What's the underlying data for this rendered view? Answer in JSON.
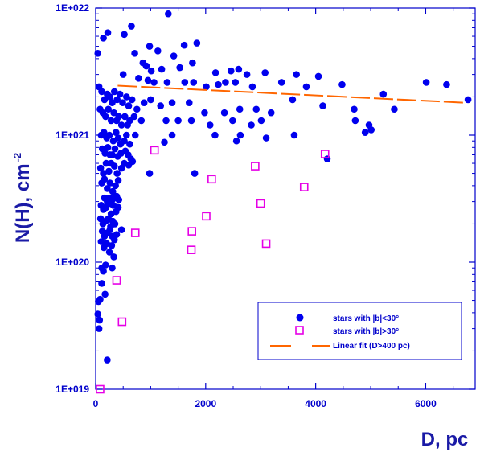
{
  "chart_data": {
    "type": "scatter",
    "xlabel": "D, pc",
    "ylabel_main": "N(H), cm",
    "ylabel_exp": "-2",
    "x_scale": "linear",
    "y_scale": "log",
    "xlim": [
      0,
      6900
    ],
    "ylim": [
      1e+19,
      1e+22
    ],
    "x_ticks": [
      0,
      2000,
      4000,
      6000
    ],
    "x_tick_labels": [
      "0",
      "2000",
      "4000",
      "6000"
    ],
    "y_ticks": [
      1e+19,
      1e+20,
      1e+21,
      1e+22
    ],
    "y_tick_labels": [
      "1E+019",
      "1E+020",
      "1E+021",
      "1E+022"
    ],
    "grid": false,
    "legend_position": "bottom-right",
    "colors": {
      "axis": "#0000cc",
      "low_b": "#0000ee",
      "high_b": "#e600e6",
      "fit": "#ff6600"
    },
    "series": [
      {
        "name": "stars with |b|<30°",
        "marker": "filled-circle",
        "points": [
          [
            1320,
            9e+21
          ],
          [
            140,
            5.8e+21
          ],
          [
            520,
            6.2e+21
          ],
          [
            220,
            6.4e+21
          ],
          [
            650,
            7.2e+21
          ],
          [
            980,
            5e+21
          ],
          [
            1130,
            4.6e+21
          ],
          [
            1420,
            4.2e+21
          ],
          [
            1610,
            5.1e+21
          ],
          [
            1840,
            5.3e+21
          ],
          [
            40,
            4.4e+21
          ],
          [
            710,
            4.4e+21
          ],
          [
            860,
            3.7e+21
          ],
          [
            920,
            3.5e+21
          ],
          [
            1010,
            3.2e+21
          ],
          [
            1200,
            3.3e+21
          ],
          [
            1530,
            3.4e+21
          ],
          [
            1760,
            3.7e+21
          ],
          [
            2180,
            3.1e+21
          ],
          [
            2460,
            3.2e+21
          ],
          [
            2600,
            3.3e+21
          ],
          [
            2750,
            3e+21
          ],
          [
            3080,
            3.1e+21
          ],
          [
            3650,
            3e+21
          ],
          [
            4050,
            2.9e+21
          ],
          [
            500,
            3e+21
          ],
          [
            780,
            2.8e+21
          ],
          [
            950,
            2.7e+21
          ],
          [
            1060,
            2.6e+21
          ],
          [
            1300,
            2.6e+21
          ],
          [
            1620,
            2.6e+21
          ],
          [
            1780,
            2.6e+21
          ],
          [
            2010,
            2.4e+21
          ],
          [
            2230,
            2.5e+21
          ],
          [
            2360,
            2.6e+21
          ],
          [
            2540,
            2.6e+21
          ],
          [
            2850,
            2.4e+21
          ],
          [
            3380,
            2.6e+21
          ],
          [
            3830,
            2.4e+21
          ],
          [
            4480,
            2.5e+21
          ],
          [
            6010,
            2.6e+21
          ],
          [
            6380,
            2.5e+21
          ],
          [
            6770,
            1.9e+21
          ],
          [
            60,
            2.4e+21
          ],
          [
            110,
            2.2e+21
          ],
          [
            160,
            1.9e+21
          ],
          [
            210,
            2.1e+21
          ],
          [
            260,
            2e+21
          ],
          [
            300,
            1.8e+21
          ],
          [
            340,
            2.2e+21
          ],
          [
            390,
            1.9e+21
          ],
          [
            440,
            2.1e+21
          ],
          [
            490,
            1.8e+21
          ],
          [
            560,
            2e+21
          ],
          [
            600,
            1.7e+21
          ],
          [
            660,
            1.9e+21
          ],
          [
            750,
            1.6e+21
          ],
          [
            880,
            1.8e+21
          ],
          [
            1000,
            1.9e+21
          ],
          [
            1180,
            1.7e+21
          ],
          [
            1390,
            1.8e+21
          ],
          [
            1700,
            1.8e+21
          ],
          [
            1980,
            1.5e+21
          ],
          [
            2340,
            1.5e+21
          ],
          [
            2620,
            1.6e+21
          ],
          [
            2920,
            1.6e+21
          ],
          [
            3190,
            1.5e+21
          ],
          [
            3580,
            1.9e+21
          ],
          [
            4130,
            1.7e+21
          ],
          [
            4700,
            1.6e+21
          ],
          [
            5230,
            2.1e+21
          ],
          [
            5430,
            1.6e+21
          ],
          [
            80,
            1.6e+21
          ],
          [
            130,
            1.5e+21
          ],
          [
            180,
            1.4e+21
          ],
          [
            230,
            1.6e+21
          ],
          [
            280,
            1.3e+21
          ],
          [
            330,
            1.5e+21
          ],
          [
            380,
            1.3e+21
          ],
          [
            420,
            1.4e+21
          ],
          [
            470,
            1.2e+21
          ],
          [
            530,
            1.4e+21
          ],
          [
            580,
            1.2e+21
          ],
          [
            620,
            1.3e+21
          ],
          [
            700,
            1.4e+21
          ],
          [
            830,
            1.3e+21
          ],
          [
            1280,
            1.3e+21
          ],
          [
            1500,
            1.3e+21
          ],
          [
            1740,
            1.3e+21
          ],
          [
            2080,
            1.2e+21
          ],
          [
            2490,
            1.3e+21
          ],
          [
            2830,
            1.2e+21
          ],
          [
            3010,
            1.3e+21
          ],
          [
            4720,
            1.3e+21
          ],
          [
            4970,
            1.2e+21
          ],
          [
            100,
            1e+21
          ],
          [
            150,
            1.05e+21
          ],
          [
            200,
            9.5e+20
          ],
          [
            250,
            1e+21
          ],
          [
            320,
            9e+20
          ],
          [
            370,
            1.05e+21
          ],
          [
            410,
            9.5e+20
          ],
          [
            450,
            8.5e+20
          ],
          [
            520,
            9e+20
          ],
          [
            560,
            1e+21
          ],
          [
            620,
            8.5e+20
          ],
          [
            720,
            1e+21
          ],
          [
            1390,
            1e+21
          ],
          [
            2170,
            1e+21
          ],
          [
            2560,
            9e+20
          ],
          [
            2630,
            1e+21
          ],
          [
            3100,
            9.5e+20
          ],
          [
            3610,
            1e+21
          ],
          [
            4900,
            1.05e+21
          ],
          [
            5010,
            1.1e+21
          ],
          [
            120,
            7.8e+20
          ],
          [
            170,
            7.2e+20
          ],
          [
            220,
            8e+20
          ],
          [
            260,
            7e+20
          ],
          [
            300,
            7e+20
          ],
          [
            350,
            7.8e+20
          ],
          [
            400,
            6.8e+20
          ],
          [
            460,
            7.2e+20
          ],
          [
            540,
            7.5e+20
          ],
          [
            590,
            7e+20
          ],
          [
            640,
            6.5e+20
          ],
          [
            1250,
            8.8e+20
          ],
          [
            4210,
            6.5e+20
          ],
          [
            90,
            5.5e+20
          ],
          [
            140,
            5e+20
          ],
          [
            190,
            6e+20
          ],
          [
            240,
            5.2e+20
          ],
          [
            280,
            6e+20
          ],
          [
            340,
            5.7e+20
          ],
          [
            390,
            5e+20
          ],
          [
            470,
            5.5e+20
          ],
          [
            520,
            6e+20
          ],
          [
            600,
            5.8e+20
          ],
          [
            670,
            6.2e+20
          ],
          [
            980,
            5e+20
          ],
          [
            1800,
            5e+20
          ],
          [
            110,
            4.2e+20
          ],
          [
            160,
            4.5e+20
          ],
          [
            210,
            3.8e+20
          ],
          [
            260,
            4.2e+20
          ],
          [
            310,
            3.6e+20
          ],
          [
            360,
            4e+20
          ],
          [
            410,
            4.4e+20
          ],
          [
            160,
            3.2e+20
          ],
          [
            210,
            3e+20
          ],
          [
            250,
            3.2e+20
          ],
          [
            300,
            3.1e+20
          ],
          [
            340,
            3.2e+20
          ],
          [
            380,
            3.3e+20
          ],
          [
            420,
            3.1e+20
          ],
          [
            100,
            2.8e+20
          ],
          [
            140,
            2.6e+20
          ],
          [
            190,
            2.7e+20
          ],
          [
            240,
            2.9e+20
          ],
          [
            280,
            2.4e+20
          ],
          [
            320,
            2.8e+20
          ],
          [
            370,
            2.5e+20
          ],
          [
            410,
            2.7e+20
          ],
          [
            90,
            2.2e+20
          ],
          [
            130,
            2e+20
          ],
          [
            180,
            2.1e+20
          ],
          [
            230,
            2.2e+20
          ],
          [
            270,
            1.9e+20
          ],
          [
            310,
            2.1e+20
          ],
          [
            350,
            2e+20
          ],
          [
            120,
            1.75e+20
          ],
          [
            160,
            1.6e+20
          ],
          [
            210,
            1.7e+20
          ],
          [
            260,
            1.8e+20
          ],
          [
            300,
            1.6e+20
          ],
          [
            340,
            1.5e+20
          ],
          [
            380,
            1.65e+20
          ],
          [
            470,
            1.8e+20
          ],
          [
            100,
            1.45e+20
          ],
          [
            150,
            1.3e+20
          ],
          [
            200,
            1.4e+20
          ],
          [
            250,
            1.2e+20
          ],
          [
            290,
            1.35e+20
          ],
          [
            330,
            1.1e+20
          ],
          [
            110,
            9e+19
          ],
          [
            140,
            8.5e+19
          ],
          [
            180,
            9.5e+19
          ],
          [
            300,
            9e+19
          ],
          [
            110,
            6.8e+19
          ],
          [
            50,
            4.9e+19
          ],
          [
            80,
            5.1e+19
          ],
          [
            170,
            5.6e+19
          ],
          [
            40,
            3.9e+19
          ],
          [
            70,
            3.5e+19
          ],
          [
            60,
            3e+19
          ],
          [
            210,
            1.7e+19
          ]
        ]
      },
      {
        "name": "stars with |b|>30°",
        "marker": "open-square",
        "points": [
          [
            80,
            1e+19
          ],
          [
            380,
            7.2e+19
          ],
          [
            480,
            3.4e+19
          ],
          [
            720,
            1.7e+20
          ],
          [
            1070,
            7.6e+20
          ],
          [
            1750,
            1.75e+20
          ],
          [
            1740,
            1.25e+20
          ],
          [
            2010,
            2.3e+20
          ],
          [
            2110,
            4.5e+20
          ],
          [
            2900,
            5.7e+20
          ],
          [
            3000,
            2.9e+20
          ],
          [
            3100,
            1.4e+20
          ],
          [
            3790,
            3.9e+20
          ],
          [
            4170,
            7.1e+20
          ]
        ]
      }
    ],
    "fit": {
      "name": "Linear fit (D>400 pc)",
      "style": "dashed",
      "x_range": [
        400,
        6700
      ],
      "y_at_start": 2.45e+21,
      "y_at_end": 1.8e+21
    }
  }
}
